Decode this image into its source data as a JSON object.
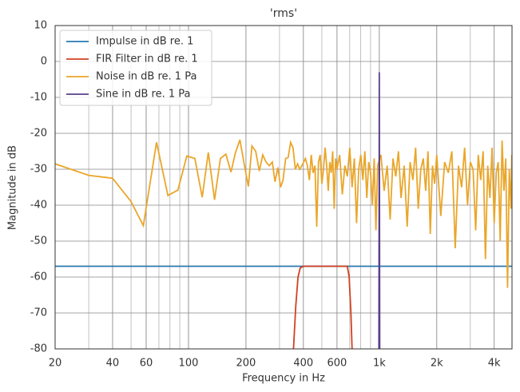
{
  "chart_data": {
    "type": "line",
    "title": "'rms'",
    "xlabel": "Frequency in Hz",
    "ylabel": "Magnitude in dB",
    "xscale": "log",
    "xlim": [
      20,
      4960
    ],
    "ylim": [
      -80,
      10
    ],
    "xticks": [
      20,
      40,
      60,
      100,
      200,
      400,
      600,
      {
        "value": 1000,
        "label": "1k"
      },
      {
        "value": 2000,
        "label": "2k"
      },
      {
        "value": 4000,
        "label": "4k"
      }
    ],
    "yticks": [
      -80,
      -70,
      -60,
      -50,
      -40,
      -30,
      -20,
      -10,
      0,
      10
    ],
    "grid": true,
    "minor_grid": true,
    "legend": "upper left",
    "series": [
      {
        "name": "Impulse in dB re. 1",
        "color": "#2a78b0",
        "x": [
          20,
          4960
        ],
        "values": [
          -57,
          -57
        ]
      },
      {
        "name": "FIR Filter in dB re. 1",
        "color": "#d2401f",
        "x": [
          355,
          365,
          375,
          385,
          400,
          680,
          695,
          710,
          720
        ],
        "values": [
          -80,
          -68,
          -60,
          -57.5,
          -57,
          -57,
          -60,
          -70,
          -80
        ]
      },
      {
        "name": "Noise in dB re. 1 Pa",
        "color": "#eaa62a",
        "x": [
          20,
          30,
          40,
          50,
          58,
          68,
          78,
          88,
          98,
          108,
          118,
          127,
          137,
          147,
          157,
          167,
          176,
          186,
          196,
          206,
          215,
          225,
          235,
          245,
          255,
          265,
          275,
          284,
          294,
          304,
          313,
          323,
          333,
          343,
          353,
          363,
          373,
          383,
          393,
          410,
          420,
          430,
          440,
          450,
          460,
          470,
          480,
          490,
          500,
          510,
          520,
          530,
          540,
          550,
          560,
          570,
          580,
          590,
          600,
          620,
          640,
          660,
          680,
          700,
          720,
          740,
          760,
          780,
          800,
          820,
          840,
          860,
          880,
          900,
          920,
          940,
          960,
          980,
          1020,
          1060,
          1100,
          1140,
          1180,
          1220,
          1260,
          1300,
          1350,
          1400,
          1450,
          1500,
          1550,
          1600,
          1650,
          1700,
          1750,
          1800,
          1850,
          1900,
          1950,
          2000,
          2100,
          2200,
          2300,
          2400,
          2500,
          2600,
          2700,
          2800,
          2900,
          3000,
          3100,
          3200,
          3300,
          3400,
          3500,
          3600,
          3700,
          3800,
          3900,
          4000,
          4100,
          4200,
          4300,
          4400,
          4500,
          4600,
          4700,
          4800,
          4900,
          4950
        ],
        "values": [
          -28.5,
          -31.7,
          -32.5,
          -39,
          -45.7,
          -22.5,
          -37.3,
          -35.8,
          -26.3,
          -27,
          -37.8,
          -25.3,
          -38.5,
          -27,
          -25.8,
          -30.8,
          -25.5,
          -21.8,
          -28.7,
          -34.8,
          -23.5,
          -25,
          -30.5,
          -26,
          -28,
          -29,
          -28,
          -33.5,
          -29.5,
          -35,
          -33,
          -27,
          -26.7,
          -22.5,
          -24,
          -30,
          -28.5,
          -30,
          -29,
          -27,
          -29,
          -33,
          -26,
          -31,
          -29,
          -46,
          -28,
          -26,
          -34,
          -30,
          -24,
          -29,
          -36,
          -28,
          -31,
          -25,
          -41,
          -27,
          -30,
          -26,
          -37,
          -29,
          -32,
          -24,
          -35,
          -27,
          -45,
          -30,
          -26,
          -33,
          -25,
          -38,
          -28,
          -31,
          -40,
          -27,
          -47,
          -29,
          -26,
          -36,
          -29,
          -44,
          -27,
          -32,
          -25,
          -38,
          -29,
          -46,
          -28,
          -33,
          -24,
          -41,
          -30,
          -27,
          -36,
          -25,
          -48,
          -29,
          -34,
          -26,
          -43,
          -28,
          -31,
          -25,
          -52,
          -29,
          -35,
          -24,
          -40,
          -28,
          -30,
          -47,
          -26,
          -33,
          -25,
          -55,
          -29,
          -38,
          -24,
          -45,
          -31,
          -28,
          -50,
          -22,
          -36,
          -27,
          -63,
          -30,
          -41,
          -26
        ]
      },
      {
        "name": "Sine in dB re. 1 Pa",
        "color": "#5a3f8a",
        "x": [
          995,
          1000,
          1005
        ],
        "values": [
          -80,
          -3,
          -80
        ]
      }
    ]
  }
}
